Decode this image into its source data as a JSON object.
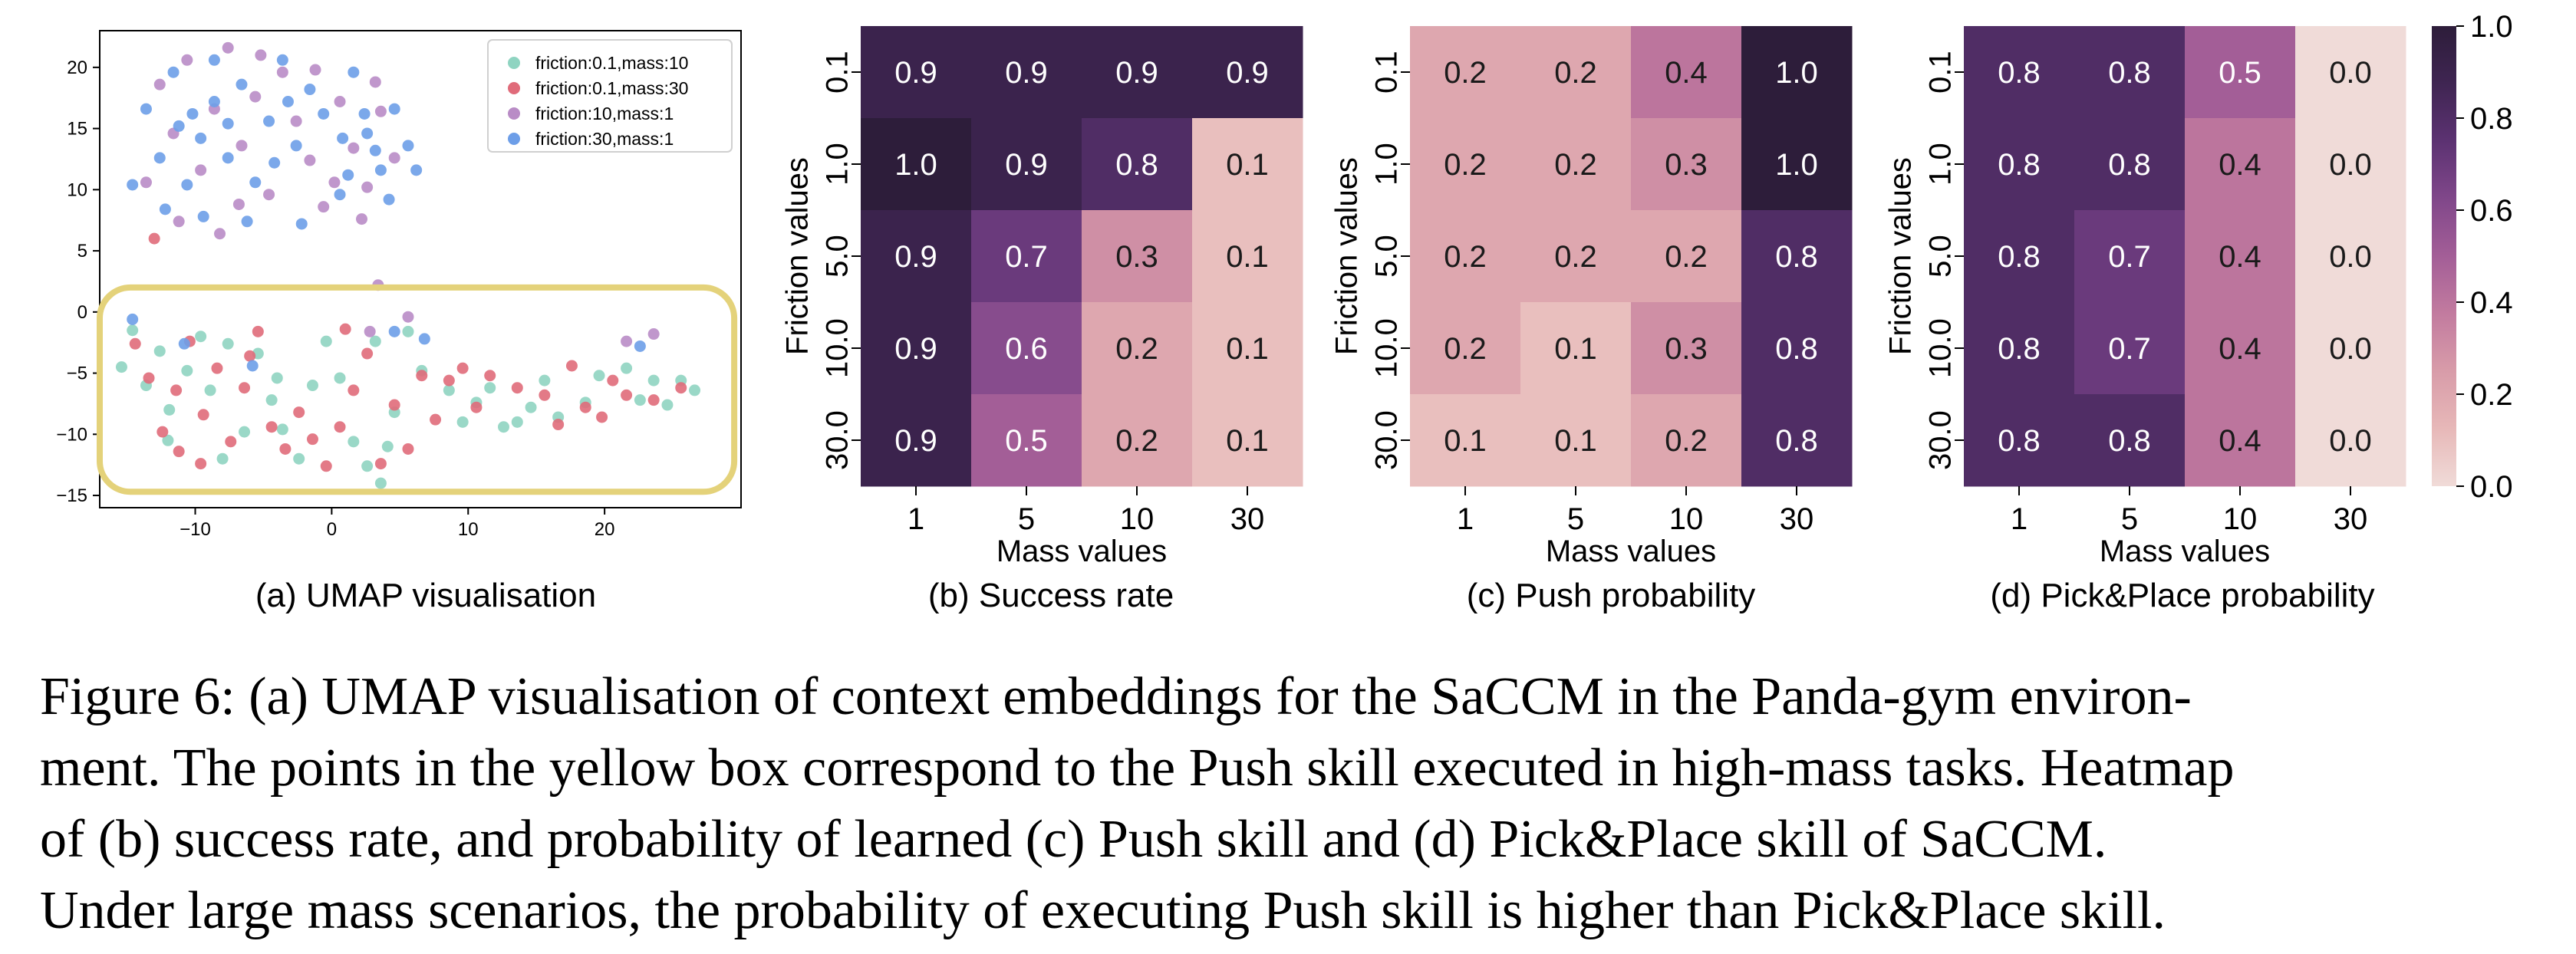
{
  "figure": {
    "subcaptions": {
      "a": "(a) UMAP visualisation",
      "b": "(b) Success rate",
      "c": "(c) Push probability",
      "d": "(d) Pick&Place probability"
    },
    "caption_lines": [
      "Figure 6: (a) UMAP visualisation of context embeddings for the SaCCM in the Panda-gym environ-",
      "ment. The points in the yellow box correspond to the Push skill executed in high-mass tasks. Heatmap",
      "of (b) success rate, and probability of learned (c) Push skill and (d) Pick&Place skill of SaCCM.",
      "Under large mass scenarios, the probability of executing Push skill is higher than Pick&Place skill."
    ]
  },
  "chart_data": [
    {
      "id": "umap",
      "type": "scatter",
      "title": "",
      "xlabel": "",
      "ylabel": "",
      "xlim": [
        -17,
        30
      ],
      "ylim": [
        -16,
        23
      ],
      "xticks": [
        -10,
        0,
        10,
        20
      ],
      "yticks": [
        -15,
        -10,
        -5,
        0,
        5,
        10,
        15,
        20
      ],
      "legend_position": "top-right",
      "highlight_box": {
        "x": [
          -17,
          29.5
        ],
        "y": [
          -14.7,
          2
        ],
        "color": "#e4d27a"
      },
      "series": [
        {
          "name": "friction:0.1,mass:10",
          "color": "#8fd4c1",
          "points": [
            [
              -15.4,
              -4.5
            ],
            [
              -14.6,
              -1.5
            ],
            [
              -13.6,
              -6
            ],
            [
              -12.6,
              -3.2
            ],
            [
              -11.9,
              -8
            ],
            [
              -10.6,
              -4.8
            ],
            [
              -9.6,
              -2
            ],
            [
              -8.9,
              -6.4
            ],
            [
              -7.6,
              -2.6
            ],
            [
              -6.4,
              -9.8
            ],
            [
              -5.4,
              -3.4
            ],
            [
              -4.4,
              -7.2
            ],
            [
              -3.6,
              -9.6
            ],
            [
              -2.4,
              -12
            ],
            [
              -1.4,
              -6
            ],
            [
              -0.4,
              -2.4
            ],
            [
              0.6,
              -5.4
            ],
            [
              1.6,
              -10.6
            ],
            [
              2.6,
              -12.6
            ],
            [
              3.6,
              -14
            ],
            [
              4.1,
              -11
            ],
            [
              4.6,
              -8.2
            ],
            [
              5.6,
              -1.6
            ],
            [
              6.6,
              -4.8
            ],
            [
              8.6,
              -6.4
            ],
            [
              9.6,
              -9
            ],
            [
              11.6,
              -6.2
            ],
            [
              12.6,
              -9.4
            ],
            [
              14.6,
              -7.8
            ],
            [
              15.6,
              -5.6
            ],
            [
              16.6,
              -8.6
            ],
            [
              18.6,
              -7.4
            ],
            [
              19.6,
              -5.2
            ],
            [
              21.6,
              -4.6
            ],
            [
              22.6,
              -7.2
            ],
            [
              23.6,
              -5.6
            ],
            [
              24.6,
              -7.6
            ],
            [
              25.6,
              -5.6
            ],
            [
              26.6,
              -6.4
            ],
            [
              13.6,
              -9
            ],
            [
              10.6,
              -7.4
            ],
            [
              -12,
              -10.5
            ],
            [
              -4,
              -5.4
            ],
            [
              3.2,
              -2.4
            ],
            [
              -8,
              -12
            ]
          ]
        },
        {
          "name": "friction:0.1,mass:30",
          "color": "#e06b7a",
          "points": [
            [
              -14.4,
              -2.6
            ],
            [
              -13.4,
              -5.4
            ],
            [
              -12.4,
              -9.8
            ],
            [
              -11.4,
              -6.4
            ],
            [
              -10.4,
              -2.4
            ],
            [
              -9.4,
              -8.4
            ],
            [
              -8.4,
              -4.6
            ],
            [
              -7.4,
              -10.6
            ],
            [
              -6.4,
              -6.2
            ],
            [
              -5.4,
              -1.6
            ],
            [
              -4.4,
              -9.4
            ],
            [
              -3.4,
              -11.2
            ],
            [
              -2.4,
              -8.2
            ],
            [
              -1.4,
              -10.4
            ],
            [
              -0.4,
              -12.6
            ],
            [
              0.6,
              -9.4
            ],
            [
              1.6,
              -6.4
            ],
            [
              2.6,
              -3.4
            ],
            [
              3.6,
              -12.4
            ],
            [
              4.6,
              -7.6
            ],
            [
              6.6,
              -5.2
            ],
            [
              7.6,
              -8.8
            ],
            [
              8.6,
              -5.6
            ],
            [
              9.6,
              -4.6
            ],
            [
              10.6,
              -7.8
            ],
            [
              13.6,
              -6.2
            ],
            [
              15.6,
              -6.8
            ],
            [
              16.6,
              -9.2
            ],
            [
              17.6,
              -4.4
            ],
            [
              18.6,
              -7.8
            ],
            [
              20.6,
              -5.6
            ],
            [
              21.6,
              -6.8
            ],
            [
              23.6,
              -7.2
            ],
            [
              25.6,
              -6.2
            ],
            [
              -13,
              6
            ],
            [
              -9.6,
              -12.4
            ],
            [
              1,
              -1.4
            ],
            [
              -6,
              -3.6
            ],
            [
              11.6,
              -5.2
            ],
            [
              5.6,
              -11.2
            ],
            [
              -11.2,
              -11.4
            ],
            [
              19.8,
              -8.6
            ]
          ]
        },
        {
          "name": "friction:10,mass:1",
          "color": "#b98cc6",
          "points": [
            [
              -12.6,
              18.6
            ],
            [
              -11.6,
              14.6
            ],
            [
              -10.6,
              20.6
            ],
            [
              -9.6,
              11.6
            ],
            [
              -8.6,
              16.6
            ],
            [
              -7.6,
              21.6
            ],
            [
              -6.6,
              13.6
            ],
            [
              -5.6,
              17.6
            ],
            [
              -4.6,
              9.6
            ],
            [
              -3.6,
              19.6
            ],
            [
              -2.6,
              15.6
            ],
            [
              -1.6,
              12.4
            ],
            [
              -0.6,
              8.6
            ],
            [
              0.6,
              17.2
            ],
            [
              1.6,
              13.4
            ],
            [
              2.6,
              10.2
            ],
            [
              3.6,
              16.4
            ],
            [
              4.6,
              12.6
            ],
            [
              -13.6,
              10.6
            ],
            [
              -11.2,
              7.4
            ],
            [
              -8.2,
              6.4
            ],
            [
              -5.2,
              21
            ],
            [
              -1.2,
              19.8
            ],
            [
              2.2,
              7.6
            ],
            [
              3.2,
              18.8
            ],
            [
              0.2,
              10.6
            ],
            [
              2.8,
              -1.6
            ],
            [
              5.6,
              -0.4
            ],
            [
              21.6,
              -2.4
            ],
            [
              23.6,
              -1.8
            ],
            [
              3.4,
              2.2
            ],
            [
              -6.8,
              8.8
            ]
          ]
        },
        {
          "name": "friction:30,mass:1",
          "color": "#6d9ee8",
          "points": [
            [
              -13.6,
              16.6
            ],
            [
              -12.6,
              12.6
            ],
            [
              -11.6,
              19.6
            ],
            [
              -10.6,
              10.4
            ],
            [
              -10.2,
              16.2
            ],
            [
              -9.6,
              14.2
            ],
            [
              -8.6,
              20.6
            ],
            [
              -7.6,
              12.6
            ],
            [
              -6.6,
              18.6
            ],
            [
              -5.6,
              10.6
            ],
            [
              -4.6,
              15.6
            ],
            [
              -3.6,
              20.6
            ],
            [
              -2.6,
              13.6
            ],
            [
              -1.6,
              18.2
            ],
            [
              -0.6,
              16.2
            ],
            [
              0.6,
              9.6
            ],
            [
              1.6,
              19.6
            ],
            [
              2.6,
              14.6
            ],
            [
              3.6,
              11.6
            ],
            [
              4.6,
              16.6
            ],
            [
              5.6,
              13.6
            ],
            [
              4.2,
              9.2
            ],
            [
              -14.6,
              10.4
            ],
            [
              -12.2,
              8.4
            ],
            [
              -9.4,
              7.8
            ],
            [
              -6.2,
              7.4
            ],
            [
              -8.6,
              17.2
            ],
            [
              1.2,
              11.2
            ],
            [
              -4.2,
              12.2
            ],
            [
              2.4,
              16.2
            ],
            [
              -11.2,
              15.2
            ],
            [
              6.2,
              11.6
            ],
            [
              3.2,
              13.2
            ],
            [
              0.8,
              14.2
            ],
            [
              -2.2,
              7.2
            ],
            [
              -7.6,
              15.4
            ],
            [
              -3.2,
              17.2
            ],
            [
              22.6,
              -2.8
            ],
            [
              6.8,
              -2.2
            ],
            [
              4.6,
              -1.6
            ],
            [
              -14.6,
              -0.6
            ],
            [
              -10.8,
              -2.6
            ],
            [
              -5.8,
              -4.4
            ]
          ]
        }
      ]
    },
    {
      "id": "success",
      "type": "heatmap",
      "title": "",
      "xlabel": "Mass values",
      "ylabel": "Friction values",
      "x_categories": [
        "1",
        "5",
        "10",
        "30"
      ],
      "y_categories": [
        "0.1",
        "1.0",
        "5.0",
        "10.0",
        "30.0"
      ],
      "values": [
        [
          0.9,
          0.9,
          0.9,
          0.9
        ],
        [
          1.0,
          0.9,
          0.8,
          0.1
        ],
        [
          0.9,
          0.7,
          0.3,
          0.1
        ],
        [
          0.9,
          0.6,
          0.2,
          0.1
        ],
        [
          0.9,
          0.5,
          0.2,
          0.1
        ]
      ],
      "value_labels": [
        [
          "0.9",
          "0.9",
          "0.9",
          "0.9"
        ],
        [
          "1.0",
          "0.9",
          "0.8",
          "0.1"
        ],
        [
          "0.9",
          "0.7",
          "0.3",
          "0.1"
        ],
        [
          "0.9",
          "0.6",
          "0.2",
          "0.1"
        ],
        [
          "0.9",
          "0.5",
          "0.2",
          "0.1"
        ]
      ]
    },
    {
      "id": "push",
      "type": "heatmap",
      "title": "",
      "xlabel": "Mass values",
      "ylabel": "Friction values",
      "x_categories": [
        "1",
        "5",
        "10",
        "30"
      ],
      "y_categories": [
        "0.1",
        "1.0",
        "5.0",
        "10.0",
        "30.0"
      ],
      "values": [
        [
          0.2,
          0.2,
          0.4,
          1.0
        ],
        [
          0.2,
          0.2,
          0.3,
          1.0
        ],
        [
          0.2,
          0.2,
          0.2,
          0.8
        ],
        [
          0.2,
          0.1,
          0.3,
          0.8
        ],
        [
          0.1,
          0.1,
          0.2,
          0.8
        ]
      ],
      "value_labels": [
        [
          "0.2",
          "0.2",
          "0.4",
          "1.0"
        ],
        [
          "0.2",
          "0.2",
          "0.3",
          "1.0"
        ],
        [
          "0.2",
          "0.2",
          "0.2",
          "0.8"
        ],
        [
          "0.2",
          "0.1",
          "0.3",
          "0.8"
        ],
        [
          "0.1",
          "0.1",
          "0.2",
          "0.8"
        ]
      ]
    },
    {
      "id": "pickplace",
      "type": "heatmap",
      "title": "",
      "xlabel": "Mass values",
      "ylabel": "Friction values",
      "x_categories": [
        "1",
        "5",
        "10",
        "30"
      ],
      "y_categories": [
        "0.1",
        "1.0",
        "5.0",
        "10.0",
        "30.0"
      ],
      "values": [
        [
          0.8,
          0.8,
          0.5,
          0.0
        ],
        [
          0.8,
          0.8,
          0.4,
          0.0
        ],
        [
          0.8,
          0.7,
          0.4,
          0.0
        ],
        [
          0.8,
          0.7,
          0.4,
          0.0
        ],
        [
          0.8,
          0.8,
          0.4,
          0.0
        ]
      ],
      "value_labels": [
        [
          "0.8",
          "0.8",
          "0.5",
          "0.0"
        ],
        [
          "0.8",
          "0.8",
          "0.4",
          "0.0"
        ],
        [
          "0.8",
          "0.7",
          "0.4",
          "0.0"
        ],
        [
          "0.8",
          "0.7",
          "0.4",
          "0.0"
        ],
        [
          "0.8",
          "0.8",
          "0.4",
          "0.0"
        ]
      ]
    },
    {
      "id": "colorbar",
      "type": "colorbar",
      "range": [
        0.0,
        1.0
      ],
      "ticks": [
        "0.0",
        "0.2",
        "0.4",
        "0.6",
        "0.8",
        "1.0"
      ],
      "colormap": [
        "#f0dbd8",
        "#e7b8b8",
        "#d89ca9",
        "#c27b9f",
        "#a35e97",
        "#80478a",
        "#5c3272",
        "#3f2552",
        "#2d1d3a"
      ]
    }
  ]
}
